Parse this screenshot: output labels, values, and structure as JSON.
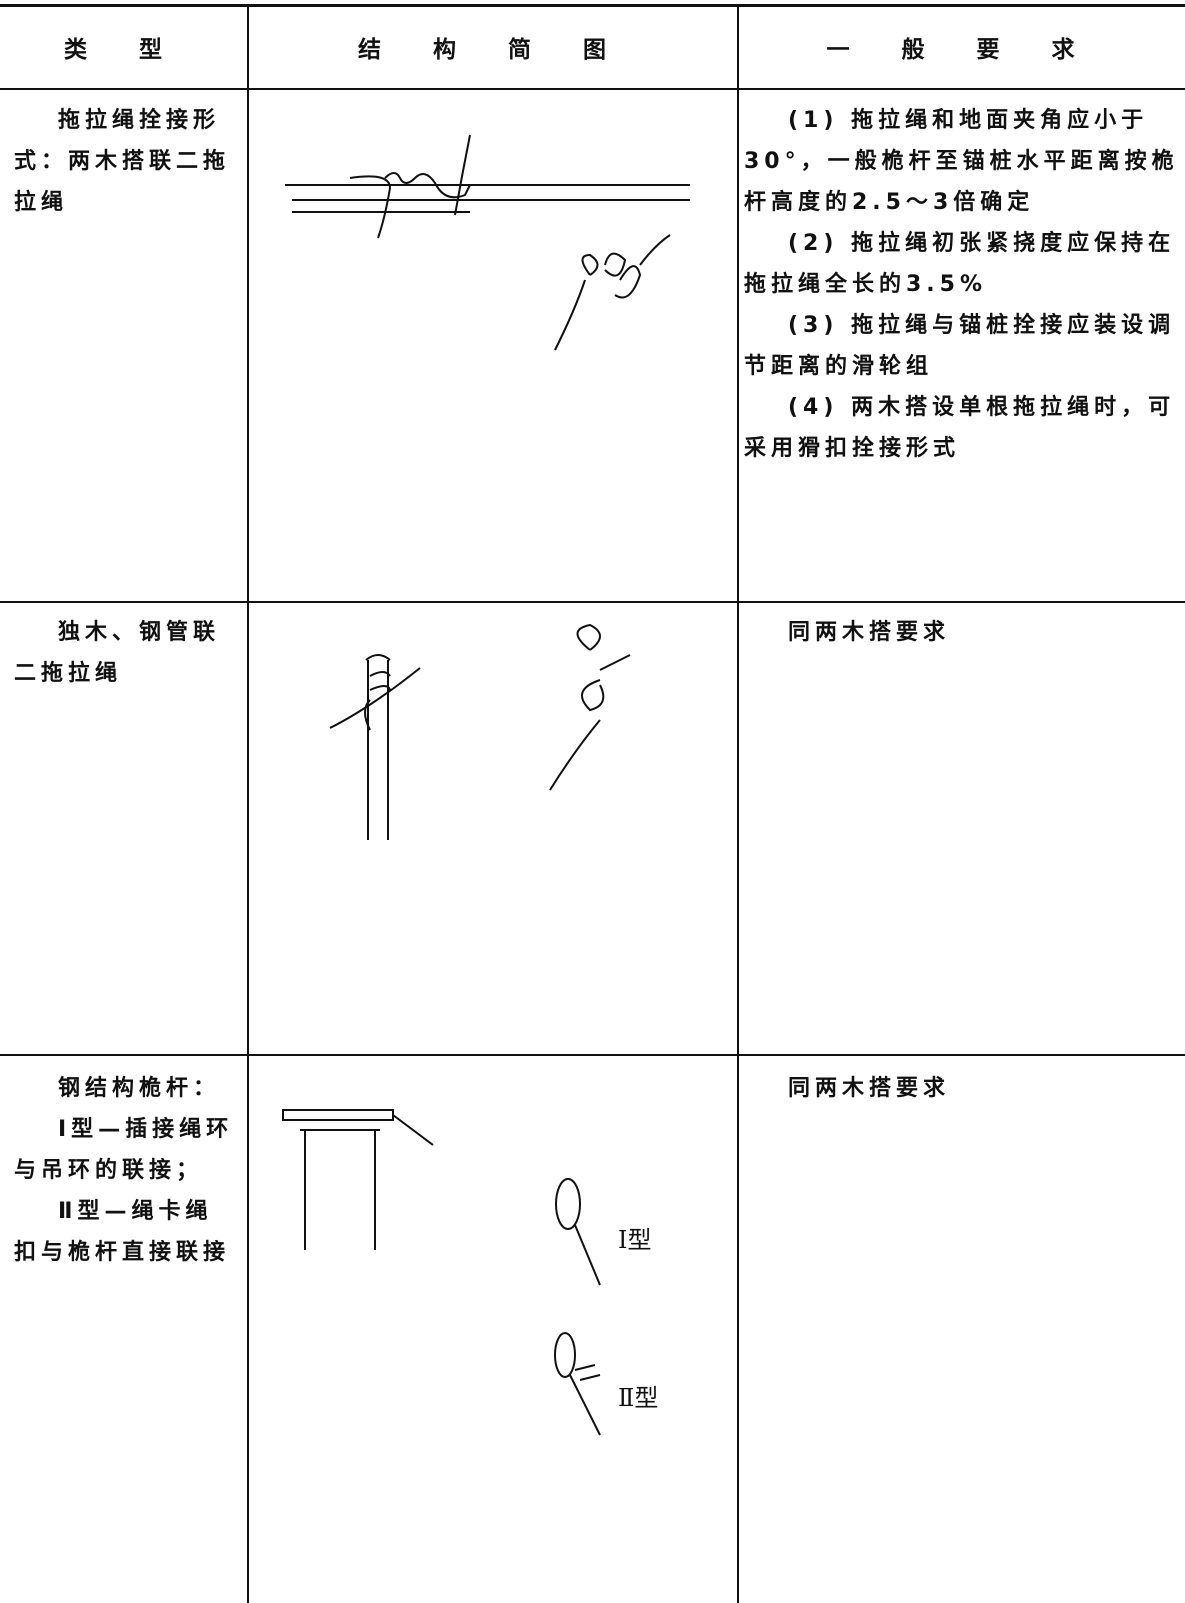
{
  "table": {
    "header": [
      "类 型",
      "结 构 简 图",
      "一 般 要 求"
    ],
    "rows": [
      {
        "type": [
          "拖拉绳拴接形式：两木搭联二拖拉绳"
        ],
        "requirements": [
          "(1) 拖拉绳和地面夹角应小于30°，一般桅杆至锚桩水平距离按桅杆高度的2.5～3倍确定",
          "(2) 拖拉绳初张紧挠度应保持在拖拉绳全长的3.5%",
          "(3) 拖拉绳与锚桩拴接应装设调节距离的滑轮组",
          "(4) 两木搭设单根拖拉绳时，可采用猾扣拴接形式"
        ]
      },
      {
        "type": [
          "独木、钢管联二拖拉绳"
        ],
        "requirements": [
          "同两木搭要求"
        ]
      },
      {
        "type": [
          "钢结构桅杆：",
          "Ⅰ型—插接绳环与吊环的联接；",
          "Ⅱ型—绳卡绳扣与桅杆直接联接"
        ],
        "diagram_labels": [
          "Ⅰ型",
          "Ⅱ型"
        ],
        "requirements": [
          "同两木搭要求"
        ]
      }
    ]
  }
}
